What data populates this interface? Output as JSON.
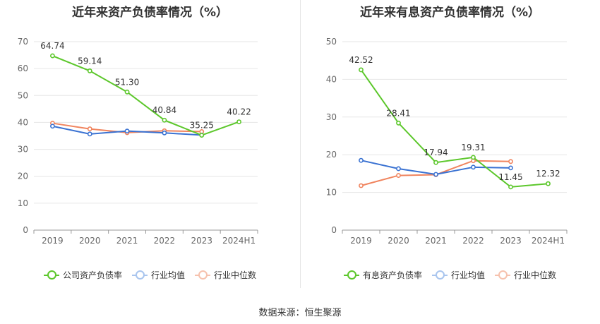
{
  "source_note": "数据来源：恒生聚源",
  "chart_data": [
    {
      "type": "line",
      "title": "近年来资产负债率情况（%）",
      "categories": [
        "2019",
        "2020",
        "2021",
        "2022",
        "2023",
        "2024H1"
      ],
      "ylim": [
        0,
        70
      ],
      "yticks": [
        0,
        10,
        20,
        30,
        40,
        50,
        60,
        70
      ],
      "grid": true,
      "legend_position": "bottom",
      "series": [
        {
          "name": "公司资产负债率",
          "color": "#5cc72b",
          "values": [
            64.74,
            59.14,
            51.3,
            40.84,
            35.25,
            40.22
          ],
          "labels": [
            "64.74",
            "59.14",
            "51.30",
            "40.84",
            "35.25",
            "40.22"
          ]
        },
        {
          "name": "行业均值",
          "color": "#3a72d2",
          "values": [
            38.6,
            35.7,
            36.8,
            36.1,
            35.3,
            null
          ]
        },
        {
          "name": "行业中位数",
          "color": "#f0845e",
          "values": [
            39.7,
            37.6,
            36.2,
            36.9,
            36.6,
            null
          ]
        }
      ]
    },
    {
      "type": "line",
      "title": "近年来有息资产负债率情况（%）",
      "categories": [
        "2019",
        "2020",
        "2021",
        "2022",
        "2023",
        "2024H1"
      ],
      "ylim": [
        0,
        50
      ],
      "yticks": [
        0,
        10,
        20,
        30,
        40,
        50
      ],
      "grid": true,
      "legend_position": "bottom",
      "series": [
        {
          "name": "有息资产负债率",
          "color": "#5cc72b",
          "values": [
            42.52,
            28.41,
            17.94,
            19.31,
            11.45,
            12.32
          ],
          "labels": [
            "42.52",
            "28.41",
            "17.94",
            "19.31",
            "11.45",
            "12.32"
          ]
        },
        {
          "name": "行业均值",
          "color": "#3a72d2",
          "values": [
            18.5,
            16.3,
            14.8,
            16.7,
            16.5,
            null
          ]
        },
        {
          "name": "行业中位数",
          "color": "#f0845e",
          "values": [
            11.8,
            14.5,
            14.7,
            18.4,
            18.2,
            null
          ]
        }
      ]
    }
  ]
}
